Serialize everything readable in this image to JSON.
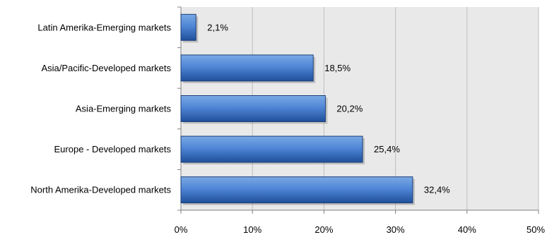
{
  "chart_data": {
    "type": "bar",
    "orientation": "horizontal",
    "categories": [
      "Latin Amerika-Emerging markets",
      "Asia/Pacific-Developed markets",
      "Asia-Emerging markets",
      "Europe - Developed markets",
      "North Amerika-Developed markets"
    ],
    "values": [
      2.1,
      18.5,
      20.2,
      25.4,
      32.4
    ],
    "data_labels": [
      "2,1%",
      "18,5%",
      "20,2%",
      "25,4%",
      "32,4%"
    ],
    "xlim": [
      0,
      50
    ],
    "x_ticks": [
      0,
      10,
      20,
      30,
      40,
      50
    ],
    "x_tick_labels": [
      "0%",
      "10%",
      "20%",
      "30%",
      "40%",
      "50%"
    ],
    "grid": true,
    "legend": "none",
    "title": "",
    "xlabel": "",
    "ylabel": ""
  },
  "colors": {
    "bar_light": "#7aa9e4",
    "bar_mid": "#4f86d6",
    "bar_dark": "#1f4f9a",
    "bar_edge": "#1d3f77",
    "plot_bg": "#e9e9e9",
    "grid": "#bfbfbf",
    "axis": "#808080"
  }
}
